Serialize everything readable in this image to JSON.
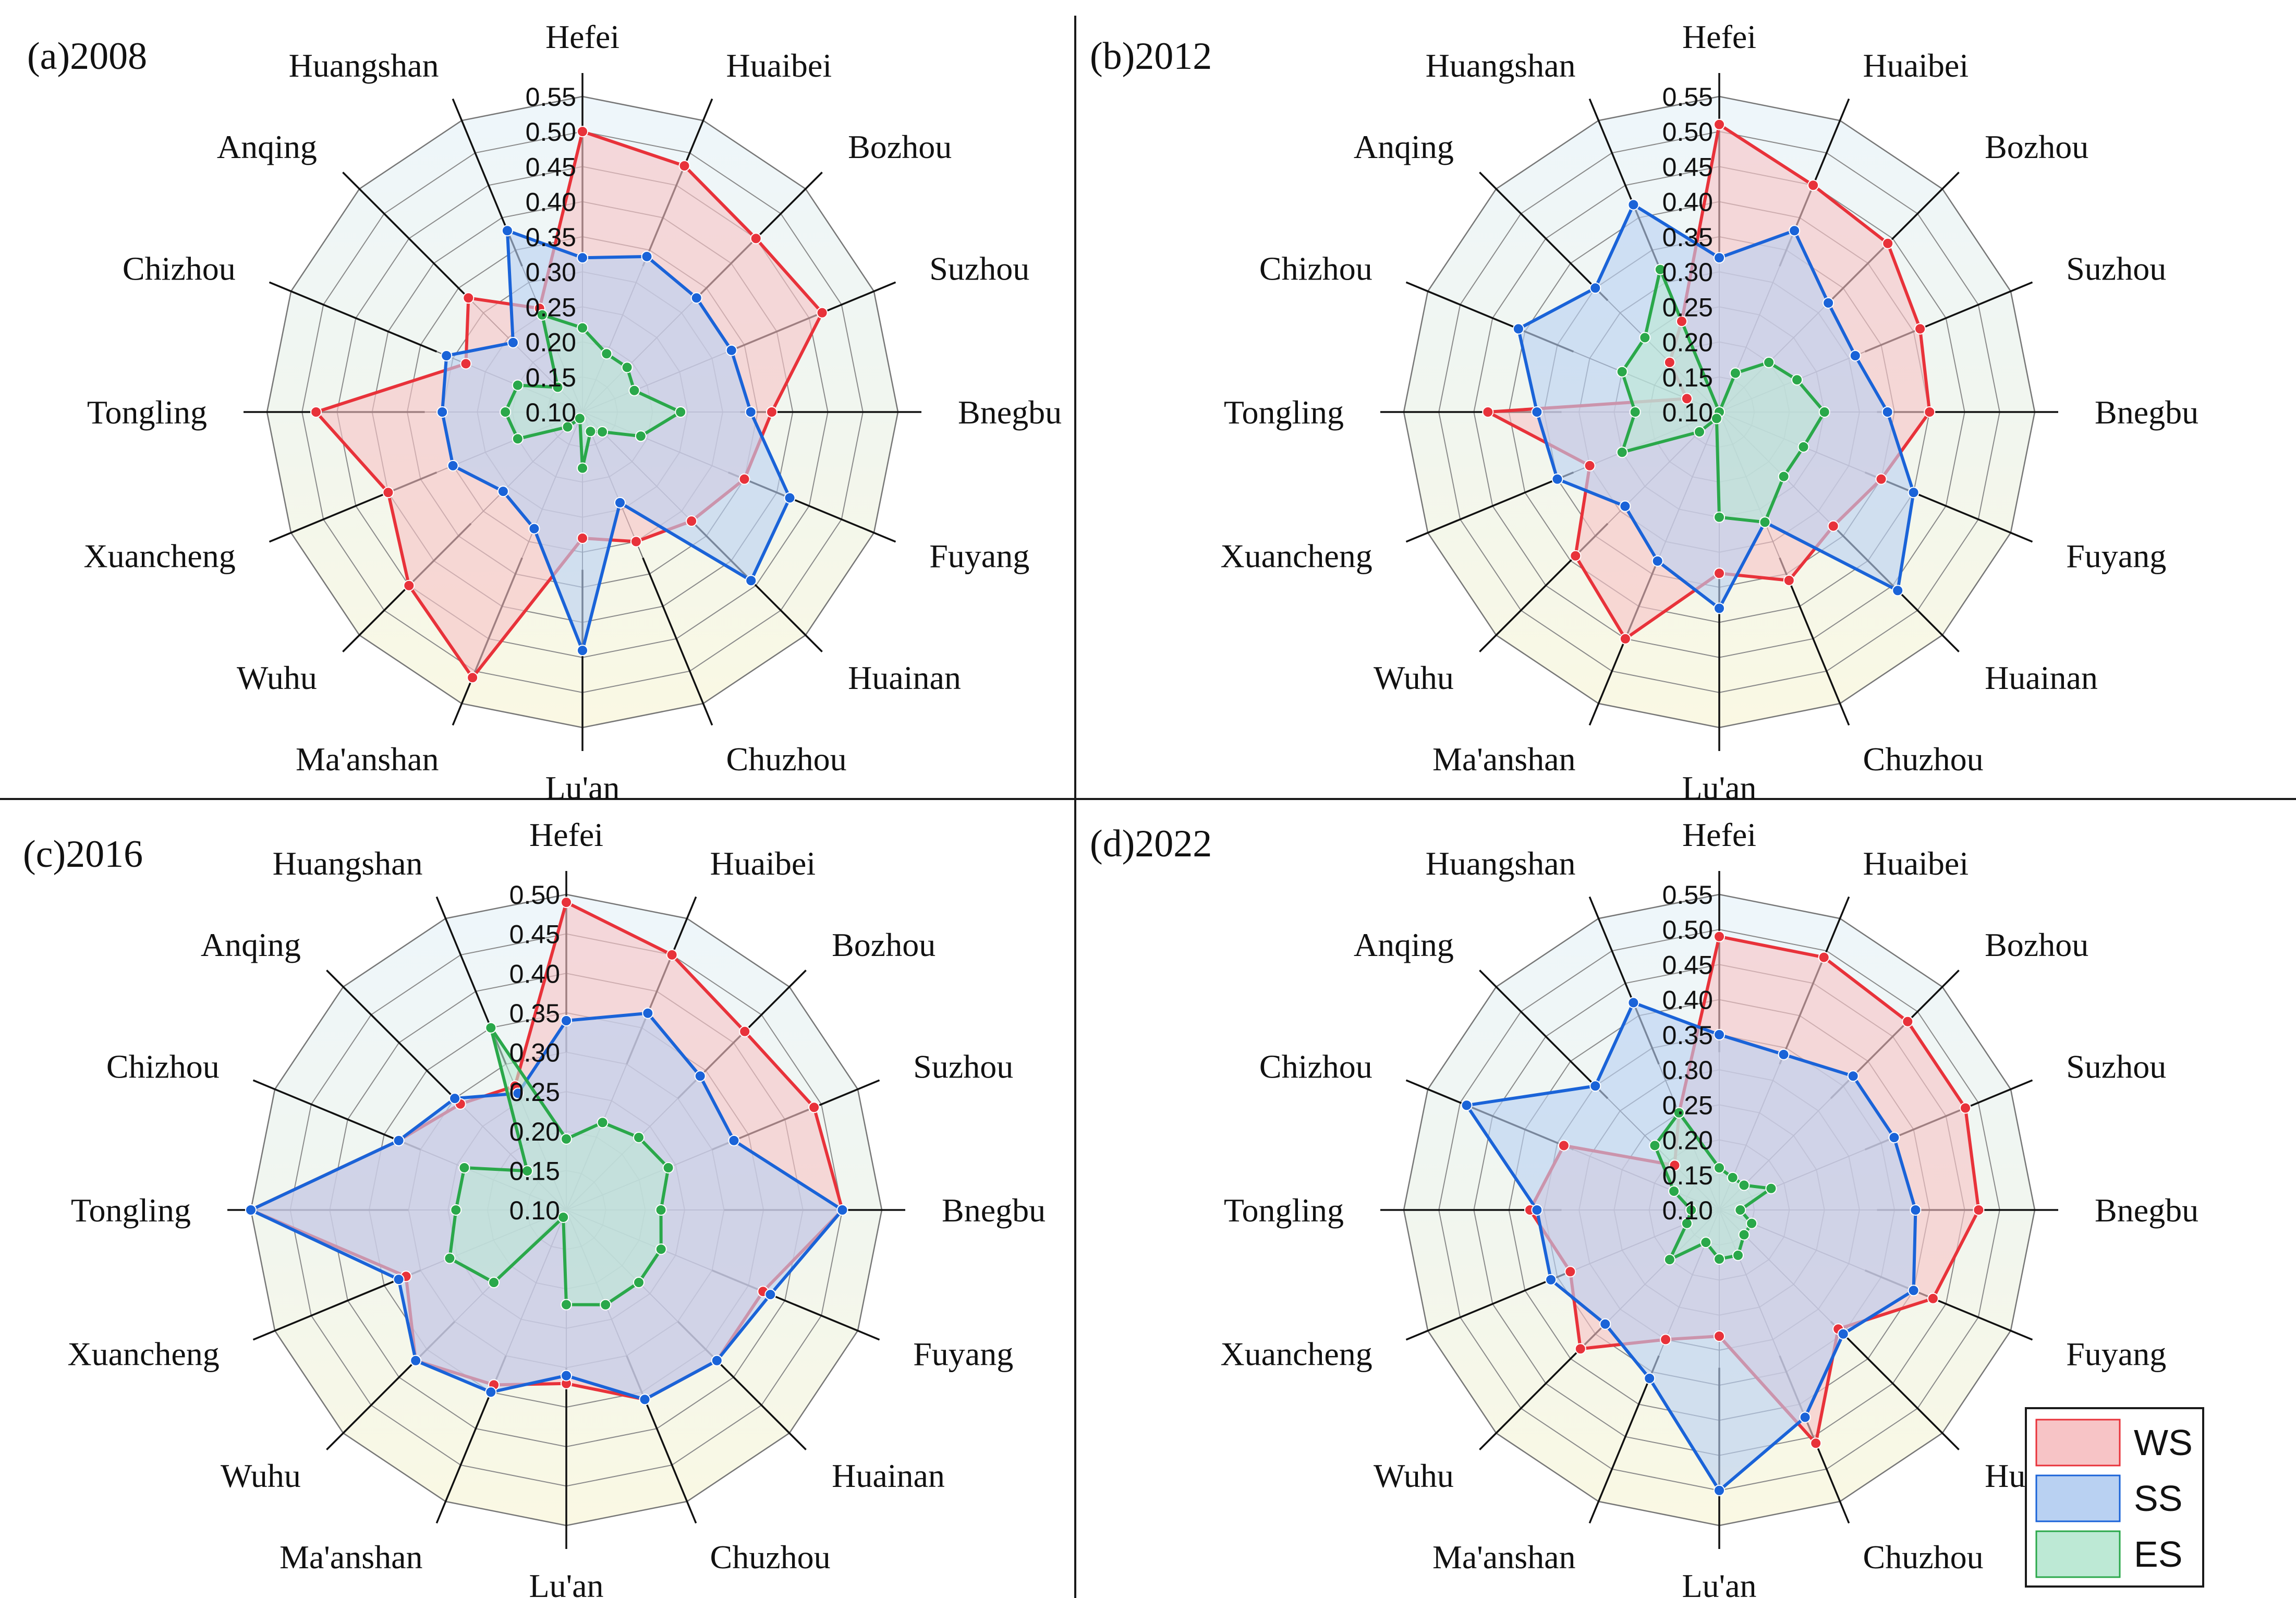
{
  "figure": {
    "legend": [
      {
        "key": "WS",
        "label": "WS",
        "fill": "#f7c4c6",
        "stroke": "#e8323a"
      },
      {
        "key": "SS",
        "label": "SS",
        "fill": "#b9d1f2",
        "stroke": "#1a63d8"
      },
      {
        "key": "ES",
        "label": "ES",
        "fill": "#bde9d5",
        "stroke": "#2aa84a"
      }
    ],
    "colors": {
      "background_top": "#eef6fb",
      "background_bottom": "#faf8e3",
      "grid": "#8a8a8a",
      "divider": "#1a1a1a"
    }
  },
  "chart_data": [
    {
      "type": "radar",
      "panel_label": "(a)2008",
      "axes": [
        "Hefei",
        "Huaibei",
        "Bozhou",
        "Suzhou",
        "Bnegbu",
        "Fuyang",
        "Huainan",
        "Chuzhou",
        "Lu'an",
        "Ma'anshan",
        "Wuhu",
        "Xuancheng",
        "Tongling",
        "Chizhou",
        "Anqing",
        "Huangshan"
      ],
      "rlim": [
        0.1,
        0.55
      ],
      "ticks": [
        "0.10",
        "0.15",
        "0.20",
        "0.25",
        "0.30",
        "0.35",
        "0.40",
        "0.45",
        "0.50",
        "0.55"
      ],
      "series": [
        {
          "name": "WS",
          "values": [
            0.5,
            0.48,
            0.45,
            0.47,
            0.37,
            0.35,
            0.32,
            0.3,
            0.28,
            0.51,
            0.45,
            0.4,
            0.48,
            0.28,
            0.33,
            0.26
          ]
        },
        {
          "name": "SS",
          "values": [
            0.32,
            0.34,
            0.33,
            0.33,
            0.34,
            0.42,
            0.44,
            0.24,
            0.44,
            0.28,
            0.26,
            0.3,
            0.3,
            0.31,
            0.24,
            0.38
          ]
        },
        {
          "name": "ES",
          "values": [
            0.22,
            0.19,
            0.19,
            0.18,
            0.24,
            0.19,
            0.14,
            0.13,
            0.18,
            0.11,
            0.13,
            0.2,
            0.21,
            0.2,
            0.15,
            0.25
          ]
        }
      ]
    },
    {
      "type": "radar",
      "panel_label": "(b)2012",
      "axes": [
        "Hefei",
        "Huaibei",
        "Bozhou",
        "Suzhou",
        "Bnegbu",
        "Fuyang",
        "Huainan",
        "Chuzhou",
        "Lu'an",
        "Ma'anshan",
        "Wuhu",
        "Xuancheng",
        "Tongling",
        "Chizhou",
        "Anqing",
        "Huangshan"
      ],
      "rlim": [
        0.1,
        0.55
      ],
      "ticks": [
        "0.10",
        "0.15",
        "0.20",
        "0.25",
        "0.30",
        "0.35",
        "0.40",
        "0.45",
        "0.50",
        "0.55"
      ],
      "series": [
        {
          "name": "WS",
          "values": [
            0.51,
            0.45,
            0.44,
            0.41,
            0.4,
            0.35,
            0.33,
            0.36,
            0.33,
            0.45,
            0.39,
            0.3,
            0.43,
            0.15,
            0.2,
            0.24
          ]
        },
        {
          "name": "SS",
          "values": [
            0.32,
            0.38,
            0.32,
            0.31,
            0.34,
            0.4,
            0.46,
            0.27,
            0.38,
            0.33,
            0.29,
            0.35,
            0.36,
            0.41,
            0.35,
            0.42
          ]
        },
        {
          "name": "ES",
          "values": [
            0.1,
            0.16,
            0.2,
            0.22,
            0.25,
            0.23,
            0.23,
            0.27,
            0.25,
            0.11,
            0.14,
            0.25,
            0.22,
            0.25,
            0.25,
            0.32
          ]
        }
      ]
    },
    {
      "type": "radar",
      "panel_label": "(c)2016",
      "axes": [
        "Hefei",
        "Huaibei",
        "Bozhou",
        "Suzhou",
        "Bnegbu",
        "Fuyang",
        "Huainan",
        "Chuzhou",
        "Lu'an",
        "Ma'anshan",
        "Wuhu",
        "Xuancheng",
        "Tongling",
        "Chizhou",
        "Anqing",
        "Huangshan"
      ],
      "rlim": [
        0.1,
        0.5
      ],
      "ticks": [
        "0.10",
        "0.15",
        "0.20",
        "0.25",
        "0.30",
        "0.35",
        "0.40",
        "0.45",
        "0.50"
      ],
      "series": [
        {
          "name": "WS",
          "values": [
            0.49,
            0.45,
            0.42,
            0.44,
            0.45,
            0.37,
            0.37,
            0.36,
            0.32,
            0.34,
            0.37,
            0.32,
            0.5,
            0.33,
            0.29,
            0.27
          ]
        },
        {
          "name": "SS",
          "values": [
            0.34,
            0.37,
            0.34,
            0.33,
            0.45,
            0.38,
            0.37,
            0.36,
            0.31,
            0.35,
            0.37,
            0.33,
            0.5,
            0.33,
            0.3,
            0.26
          ]
        },
        {
          "name": "ES",
          "values": [
            0.19,
            0.22,
            0.23,
            0.24,
            0.22,
            0.23,
            0.23,
            0.23,
            0.22,
            0.11,
            0.23,
            0.26,
            0.24,
            0.24,
            0.17,
            0.35
          ]
        }
      ]
    },
    {
      "type": "radar",
      "panel_label": "(d)2022",
      "axes": [
        "Hefei",
        "Huaibei",
        "Bozhou",
        "Suzhou",
        "Bnegbu",
        "Fuyang",
        "Huainan",
        "Chuzhou",
        "Lu'an",
        "Ma'anshan",
        "Wuhu",
        "Xuancheng",
        "Tongling",
        "Chizhou",
        "Anqing",
        "Huangshan"
      ],
      "rlim": [
        0.1,
        0.55
      ],
      "ticks": [
        "0.10",
        "0.15",
        "0.20",
        "0.25",
        "0.30",
        "0.35",
        "0.40",
        "0.45",
        "0.50",
        "0.55"
      ],
      "series": [
        {
          "name": "WS",
          "values": [
            0.49,
            0.49,
            0.48,
            0.48,
            0.47,
            0.43,
            0.34,
            0.46,
            0.28,
            0.3,
            0.38,
            0.33,
            0.37,
            0.34,
            0.19,
            0.25
          ]
        },
        {
          "name": "SS",
          "values": [
            0.35,
            0.34,
            0.37,
            0.37,
            0.38,
            0.4,
            0.35,
            0.42,
            0.5,
            0.36,
            0.33,
            0.36,
            0.36,
            0.49,
            0.35,
            0.42
          ]
        },
        {
          "name": "ES",
          "values": [
            0.16,
            0.15,
            0.15,
            0.18,
            0.13,
            0.15,
            0.15,
            0.17,
            0.17,
            0.15,
            0.2,
            0.15,
            0.14,
            0.17,
            0.23,
            0.25
          ]
        }
      ]
    }
  ]
}
